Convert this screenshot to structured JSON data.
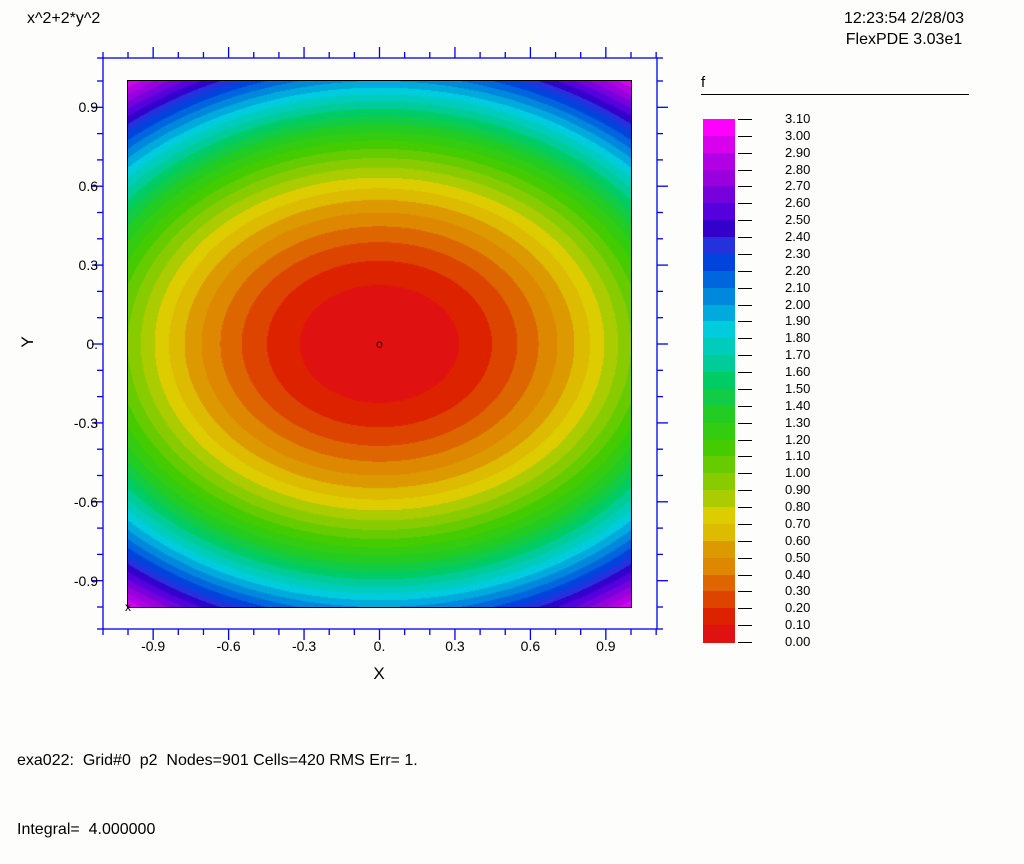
{
  "header": {
    "title": "x^2+2*y^2",
    "timestamp": "12:23:54 2/28/03",
    "app_version": "FlexPDE 3.03e1"
  },
  "status": {
    "line1": "exa022:  Grid#0  p2  Nodes=901 Cells=420 RMS Err= 1.",
    "line2": "Integral=  4.000000"
  },
  "chart_data": {
    "type": "heatmap",
    "subtype": "filled-contour",
    "title": "x^2+2*y^2",
    "function": "x^2+2*y^2",
    "coeff_x2": 1,
    "coeff_y2": 2,
    "xlabel": "X",
    "ylabel": "Y",
    "xlim": [
      -1,
      1
    ],
    "ylim": [
      -1,
      1
    ],
    "value_min": 0.0,
    "value_max": 3.0,
    "levels": {
      "min": 0.0,
      "max": 3.1,
      "step": 0.1
    },
    "minor_tick_step": 0.1,
    "grid": false,
    "legend_position": "right",
    "axis_color": "#0000ee",
    "boundary_color": "#000000",
    "x_ticks": [
      {
        "value": -0.9,
        "label": "-0.9"
      },
      {
        "value": -0.6,
        "label": "-0.6"
      },
      {
        "value": -0.3,
        "label": "-0.3"
      },
      {
        "value": 0,
        "label": "0."
      },
      {
        "value": 0.3,
        "label": "0.3"
      },
      {
        "value": 0.6,
        "label": "0.6"
      },
      {
        "value": 0.9,
        "label": "0.9"
      }
    ],
    "y_ticks": [
      {
        "value": 0.9,
        "label": "0.9"
      },
      {
        "value": 0.6,
        "label": "0.6"
      },
      {
        "value": 0.3,
        "label": "0.3"
      },
      {
        "value": 0,
        "label": "0."
      },
      {
        "value": -0.3,
        "label": "-0.3"
      },
      {
        "value": -0.6,
        "label": "-0.6"
      },
      {
        "value": -0.9,
        "label": "-0.9"
      }
    ],
    "markers": [
      {
        "glyph": "o",
        "x": 0,
        "y": 0
      },
      {
        "glyph": "x",
        "x": -1,
        "y": -1
      }
    ],
    "legend": {
      "title": "f",
      "labels": [
        "3.10",
        "3.00",
        "2.90",
        "2.80",
        "2.70",
        "2.60",
        "2.50",
        "2.40",
        "2.30",
        "2.20",
        "2.10",
        "2.00",
        "1.90",
        "1.80",
        "1.70",
        "1.60",
        "1.50",
        "1.40",
        "1.30",
        "1.20",
        "1.10",
        "1.00",
        "0.90",
        "0.80",
        "0.70",
        "0.60",
        "0.50",
        "0.40",
        "0.30",
        "0.20",
        "0.10",
        "0.00"
      ],
      "band_colors_low_to_high": [
        "#e01111",
        "#dd2200",
        "#dd4400",
        "#dd6600",
        "#dd8800",
        "#dd9900",
        "#ddbb00",
        "#ddcc00",
        "#aacc00",
        "#88cc00",
        "#66cc00",
        "#44cc00",
        "#33cc11",
        "#22cc22",
        "#11cc44",
        "#00cc66",
        "#00cc99",
        "#00ccbb",
        "#00ccdd",
        "#00aadd",
        "#0088dd",
        "#0066dd",
        "#0044dd",
        "#2233dd",
        "#3300cc",
        "#5500dd",
        "#7700dd",
        "#9900dd",
        "#b200e6",
        "#d900ee",
        "#ff00ff"
      ]
    }
  }
}
